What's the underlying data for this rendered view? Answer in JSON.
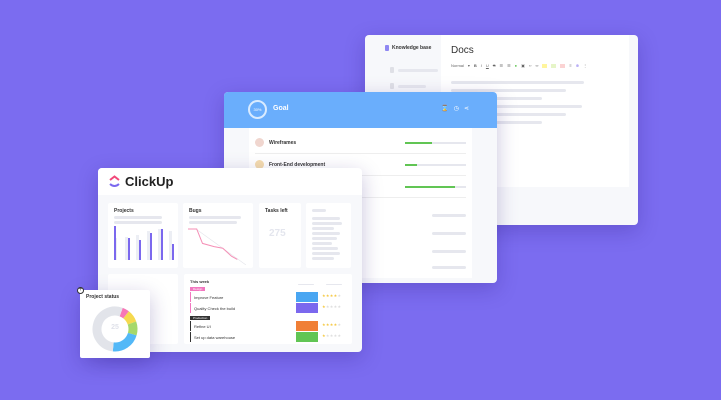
{
  "docs": {
    "sidebar_title": "Knowledge base",
    "title": "Docs",
    "toolbar": {
      "style_select": "Normal",
      "bold": "B",
      "italic": "I",
      "underline": "U",
      "strike": "S"
    }
  },
  "goal": {
    "title": "Goal",
    "progress_label": "30%",
    "progress": 0.3,
    "items": [
      {
        "name": "Wireframes",
        "progress": 0.44
      },
      {
        "name": "Front-End development",
        "progress": 0.2
      },
      {
        "name": "",
        "progress": 0.82
      }
    ]
  },
  "dashboard": {
    "brand": "ClickUp",
    "projects": {
      "title": "Projects",
      "bars": [
        0.95,
        0.6,
        0.55,
        0.75,
        0.85,
        0.45
      ],
      "bg_bars": [
        0.6,
        0.65,
        0.7,
        0.8,
        0.85,
        0.8
      ]
    },
    "bugs": {
      "title": "Bugs",
      "points": [
        [
          0,
          0
        ],
        [
          0.15,
          0
        ],
        [
          0.25,
          0.45
        ],
        [
          0.45,
          0.55
        ],
        [
          0.6,
          0.6
        ],
        [
          0.75,
          0.85
        ],
        [
          0.85,
          0.95
        ]
      ]
    },
    "tasks_left": {
      "title": "Tasks left",
      "value": "275"
    },
    "this_week": {
      "title": "This week",
      "groups": [
        {
          "tag": "Design",
          "color": "#f277c0",
          "rows": [
            {
              "name": "Improve Feature",
              "cell_color": "#49a6f2",
              "stars": 4
            },
            {
              "name": "Quality Check the build",
              "cell_color": "#7b68ee",
              "stars": 1
            }
          ]
        },
        {
          "tag": "Production",
          "color": "#333333",
          "rows": [
            {
              "name": "Refine UI",
              "cell_color": "#f07f36",
              "stars": 4
            },
            {
              "name": "Set up data warehouse",
              "cell_color": "#61c554",
              "stars": 1
            }
          ]
        }
      ]
    }
  },
  "project_status": {
    "title": "Project status",
    "value": "25",
    "slices": [
      {
        "color": "#f777b6",
        "value": 5
      },
      {
        "color": "#f5d94f",
        "value": 9
      },
      {
        "color": "#a6d86a",
        "value": 10
      },
      {
        "color": "#53b8f7",
        "value": 22
      },
      {
        "color": "#e2e4ea",
        "value": 54
      }
    ]
  },
  "colors": {
    "background": "#7b6cf0",
    "goal_header": "#6aaefc",
    "accent": "#7b68ee",
    "progress": "#61c554"
  }
}
